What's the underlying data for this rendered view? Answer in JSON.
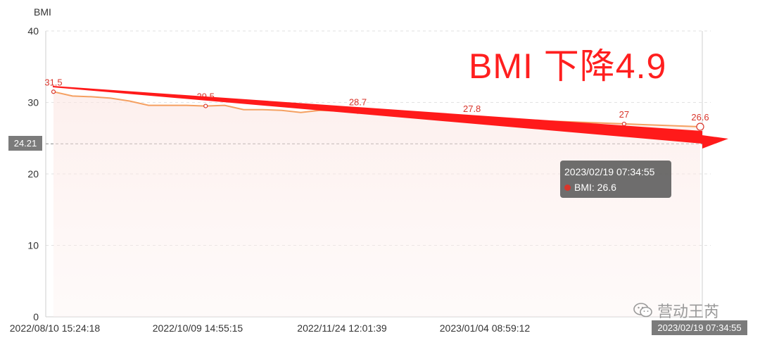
{
  "colors": {
    "line": "#f5a061",
    "trend_arrow": "#ff1a1a",
    "point_label": "#d9352b",
    "marker_bg": "#7b7b7b",
    "tooltip_bg": "#555555",
    "area_fill": "#fdecea"
  },
  "overlay": {
    "title": "BMI 下降4.9"
  },
  "y_marker": {
    "value": "24.21"
  },
  "x_marker": {
    "value": "2023/02/19 07:34:55"
  },
  "tooltip": {
    "time": "2023/02/19 07:34:55",
    "series_label": "BMI: 26.6"
  },
  "watermark": {
    "text": "营动王芮",
    "icon": "wechat-icon"
  },
  "chart_data": {
    "type": "line",
    "ylabel": "BMI",
    "ylim": [
      0,
      40
    ],
    "yticks": [
      "0",
      "10",
      "20",
      "30",
      "40"
    ],
    "xticks": [
      "2022/08/10 15:24:18",
      "2022/10/09 14:55:15",
      "2022/11/24 12:01:39",
      "2023/01/04 08:59:12"
    ],
    "grid": true,
    "reference_line": 24.21,
    "series": [
      {
        "values": [
          31.5,
          30.9,
          30.8,
          30.6,
          30.2,
          29.6,
          29.6,
          29.6,
          29.5,
          29.6,
          29.0,
          29.0,
          28.9,
          28.6,
          28.9,
          28.8,
          28.7,
          28.5,
          28.4,
          28.2,
          28.0,
          27.9,
          27.8,
          27.7,
          27.6,
          27.5,
          27.4,
          27.3,
          27.2,
          27.1,
          27.0,
          26.9,
          26.8,
          26.7,
          26.6
        ],
        "labeled_points": [
          {
            "index": 0,
            "label": "31.5"
          },
          {
            "index": 8,
            "label": "29.5"
          },
          {
            "index": 16,
            "label": "28.7"
          },
          {
            "index": 22,
            "label": "27.8"
          },
          {
            "index": 30,
            "label": "27"
          },
          {
            "index": 34,
            "label": "26.6"
          }
        ]
      }
    ]
  }
}
